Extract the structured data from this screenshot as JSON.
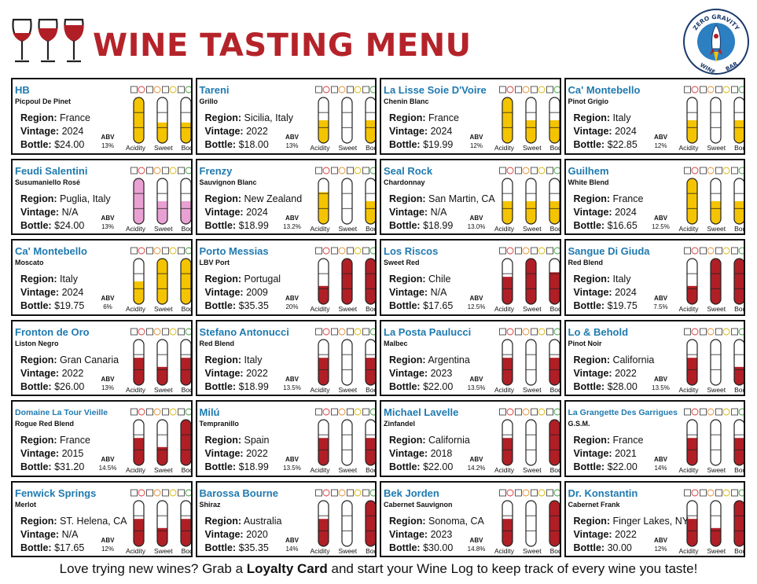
{
  "header": {
    "title": "WINE TASTING MENU",
    "logo": {
      "top_text": "ZERO GRAVITY",
      "bottom_left": "WINE",
      "bottom_right": "BAR"
    }
  },
  "labels": {
    "region": "Region:",
    "vintage": "Vintage:",
    "bottle": "Bottle:",
    "abv": "ABV",
    "acidity": "Acidity",
    "sweet": "Sweet",
    "body": "Body"
  },
  "colors": {
    "white": "#f5c400",
    "rose": "#e9a1d3",
    "red": "#b01f25",
    "title": "#b5232a",
    "name": "#1f7ab0"
  },
  "wines": [
    {
      "name": "HB",
      "grape": "Picpoul De Pinet",
      "region": "France",
      "vintage": "2024",
      "bottle": "$24.00",
      "abv": "13%",
      "color": "white",
      "levels": [
        1,
        0.45,
        0.45
      ]
    },
    {
      "name": "Tareni",
      "grape": "Grillo",
      "region": "Sicilia, Italy",
      "vintage": "2022",
      "bottle": "$18.00",
      "abv": "13%",
      "color": "white",
      "levels": [
        0.5,
        0,
        0.5
      ]
    },
    {
      "name": "La Lisse Soie D'Voire",
      "grape": "Chenin Blanc",
      "region": "France",
      "vintage": "2024",
      "bottle": "$19.99",
      "abv": "12%",
      "color": "white",
      "levels": [
        1,
        0.5,
        0.5
      ]
    },
    {
      "name": "Ca' Montebello",
      "grape": "Pinot Grigio",
      "region": "Italy",
      "vintage": "2024",
      "bottle": "$22.85",
      "abv": "12%",
      "color": "white",
      "levels": [
        0.5,
        0,
        0.5
      ]
    },
    {
      "name": "Feudi Salentini",
      "grape": "Susumaniello Rosé",
      "region": "Puglia, Italy",
      "vintage": "N/A",
      "bottle": "$24.00",
      "abv": "13%",
      "color": "rose",
      "levels": [
        1,
        0.5,
        0.5
      ]
    },
    {
      "name": "Frenzy",
      "grape": "Sauvignon Blanc",
      "region": "New Zealand",
      "vintage": "2024",
      "bottle": "$18.99",
      "abv": "13.2%",
      "color": "white",
      "levels": [
        0.7,
        0,
        0.5
      ]
    },
    {
      "name": "Seal Rock",
      "grape": "Chardonnay",
      "region": "San Martin, CA",
      "vintage": "N/A",
      "bottle": "$18.99",
      "abv": "13.0%",
      "color": "white",
      "levels": [
        0.5,
        0.5,
        0.5
      ]
    },
    {
      "name": "Guilhem",
      "grape": "White Blend",
      "region": "France",
      "vintage": "2024",
      "bottle": "$16.65",
      "abv": "12.5%",
      "color": "white",
      "levels": [
        1,
        0.5,
        0.5
      ]
    },
    {
      "name": "Ca' Montebello",
      "grape": "Moscato",
      "region": "Italy",
      "vintage": "2024",
      "bottle": "$19.75",
      "abv": "6%",
      "color": "white",
      "levels": [
        0.5,
        1,
        1
      ]
    },
    {
      "name": "Porto Messias",
      "grape": "LBV Port",
      "region": "Portugal",
      "vintage": "2009",
      "bottle": "$35.35",
      "abv": "20%",
      "color": "red",
      "levels": [
        0.4,
        1,
        1
      ]
    },
    {
      "name": "Los Riscos",
      "grape": "Sweet Red",
      "region": "Chile",
      "vintage": "N/A",
      "bottle": "$17.65",
      "abv": "12.5%",
      "color": "red",
      "levels": [
        0.6,
        1,
        0.7
      ]
    },
    {
      "name": "Sangue Di Giuda",
      "grape": "Red Blend",
      "region": "Italy",
      "vintage": "2024",
      "bottle": "$19.75",
      "abv": "7.5%",
      "color": "red",
      "levels": [
        0.4,
        1,
        1
      ]
    },
    {
      "name": "Fronton de Oro",
      "grape": "Liston Negro",
      "region": "Gran Canaria",
      "vintage": "2022",
      "bottle": "$26.00",
      "abv": "13%",
      "color": "red",
      "levels": [
        0.6,
        0.4,
        0.6
      ]
    },
    {
      "name": "Stefano Antonucci",
      "grape": "Red Blend",
      "region": "Italy",
      "vintage": "2022",
      "bottle": "$18.99",
      "abv": "13.5%",
      "color": "red",
      "levels": [
        0.6,
        0,
        0.6
      ]
    },
    {
      "name": "La Posta Paulucci",
      "grape": "Malbec",
      "region": "Argentina",
      "vintage": "2023",
      "bottle": "$22.00",
      "abv": "13.5%",
      "color": "red",
      "levels": [
        0.6,
        0,
        0.6
      ]
    },
    {
      "name": "Lo & Behold",
      "grape": "Pinot Noir",
      "region": "California",
      "vintage": "2022",
      "bottle": "$28.00",
      "abv": "13.5%",
      "color": "red",
      "levels": [
        0.6,
        0,
        0.4
      ]
    },
    {
      "name": "Domaine La Tour Vieille",
      "grape": "Rogue Red Blend",
      "region": "France",
      "vintage": "2015",
      "bottle": "$31.20",
      "abv": "14.5%",
      "color": "red",
      "levels": [
        0.6,
        0.4,
        1
      ]
    },
    {
      "name": "Milú",
      "grape": "Tempranillo",
      "region": "Spain",
      "vintage": "2022",
      "bottle": "$18.99",
      "abv": "13.5%",
      "color": "red",
      "levels": [
        0.6,
        0,
        0.6
      ]
    },
    {
      "name": "Michael Lavelle",
      "grape": "Zinfandel",
      "region": "California",
      "vintage": "2018",
      "bottle": "$22.00",
      "abv": "14.2%",
      "color": "red",
      "levels": [
        0.6,
        0,
        1
      ]
    },
    {
      "name": "La Grangette Des Garrigues",
      "grape": "G.S.M.",
      "region": "France",
      "vintage": "2021",
      "bottle": "$22.00",
      "abv": "14%",
      "color": "red",
      "levels": [
        0.6,
        0,
        0.6
      ]
    },
    {
      "name": "Fenwick Springs",
      "grape": "Merlot",
      "region": "ST. Helena, CA",
      "vintage": "N/A",
      "bottle": "$17.65",
      "abv": "12%",
      "color": "red",
      "levels": [
        0.6,
        0.4,
        0.6
      ]
    },
    {
      "name": "Barossa Bourne",
      "grape": "Shiraz",
      "region": "Australia",
      "vintage": "2020",
      "bottle": "$35.35",
      "abv": "14%",
      "color": "red",
      "levels": [
        0.6,
        0,
        1
      ]
    },
    {
      "name": "Bek Jorden",
      "grape": "Cabernet Sauvignon",
      "region": "Sonoma, CA",
      "vintage": "2023",
      "bottle": "$30.00",
      "abv": "14.8%",
      "color": "red",
      "levels": [
        0.6,
        0,
        1
      ]
    },
    {
      "name": "Dr. Konstantin",
      "grape": "Cabernet Frank",
      "region": "Finger Lakes, NY",
      "vintage": "2022",
      "bottle": "30.00",
      "abv": "12%",
      "color": "red",
      "levels": [
        0.6,
        0.4,
        1
      ]
    }
  ],
  "footer": {
    "pre": "Love trying new wines? Grab a ",
    "bold": "Loyalty Card",
    "post": " and start your Wine Log to keep track of every wine you taste!"
  }
}
